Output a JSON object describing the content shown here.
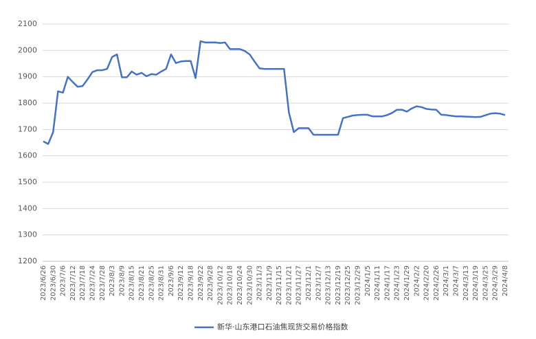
{
  "chart_data": {
    "type": "line",
    "categories": [
      "2023/6/26",
      null,
      "2023/6/30",
      null,
      "2023/7/6",
      null,
      "2023/7/12",
      null,
      "2023/7/18",
      null,
      "2023/7/24",
      null,
      "2023/7/28",
      null,
      "2023/8/3",
      null,
      "2023/8/9",
      null,
      "2023/8/15",
      null,
      "2023/8/21",
      null,
      "2023/8/25",
      null,
      "2023/8/31",
      null,
      "2023/9/6",
      null,
      "2023/9/12",
      null,
      "2023/9/18",
      null,
      "2023/9/22",
      null,
      "2023/9/28",
      null,
      "2023/10/12",
      null,
      "2023/10/18",
      null,
      "2023/10/24",
      null,
      "2023/10/30",
      null,
      "2023/11/3",
      null,
      "2023/11/9",
      null,
      "2023/11/15",
      null,
      "2023/11/21",
      null,
      "2023/11/27",
      null,
      "2023/12/1",
      null,
      "2023/12/7",
      null,
      "2023/12/13",
      null,
      "2023/12/19",
      null,
      "2023/12/25",
      null,
      "2023/12/29",
      null,
      "2024/1/5",
      null,
      "2024/1/11",
      null,
      "2024/1/17",
      null,
      "2024/1/23",
      null,
      "2024/1/29",
      null,
      "2024/2/2",
      null,
      "2024/2/20",
      null,
      "2024/2/26",
      null,
      "2024/3/1",
      null,
      "2024/3/7",
      null,
      "2024/3/13",
      null,
      "2024/3/19",
      null,
      "2024/3/25",
      null,
      "2024/3/29",
      null,
      "2024/4/8"
    ],
    "series": [
      {
        "name": "新华·山东港口石油焦现货交易价格指数",
        "color": "#4472c4",
        "values": [
          1655,
          1645,
          1690,
          1845,
          1840,
          1900,
          1880,
          1862,
          1865,
          1890,
          1918,
          1925,
          1925,
          1930,
          1975,
          1985,
          1898,
          1898,
          1920,
          1908,
          1915,
          1902,
          1910,
          1908,
          1920,
          1930,
          1985,
          1952,
          1958,
          1960,
          1960,
          1895,
          2035,
          2030,
          2030,
          2030,
          2028,
          2030,
          2005,
          2005,
          2005,
          1998,
          1985,
          1958,
          1932,
          1930,
          1930,
          1930,
          1930,
          1930,
          1765,
          1690,
          1705,
          1705,
          1705,
          1680,
          1680,
          1680,
          1680,
          1680,
          1680,
          1743,
          1748,
          1753,
          1755,
          1756,
          1756,
          1750,
          1750,
          1750,
          1755,
          1763,
          1775,
          1775,
          1768,
          1780,
          1788,
          1785,
          1778,
          1776,
          1775,
          1756,
          1755,
          1752,
          1750,
          1750,
          1749,
          1748,
          1747,
          1748,
          1754,
          1760,
          1762,
          1760,
          1755
        ]
      }
    ],
    "ylim": [
      1200,
      2100
    ],
    "yticks": [
      1200,
      1300,
      1400,
      1500,
      1600,
      1700,
      1800,
      1900,
      2000,
      2100
    ],
    "grid": true,
    "legend": "bottom"
  }
}
